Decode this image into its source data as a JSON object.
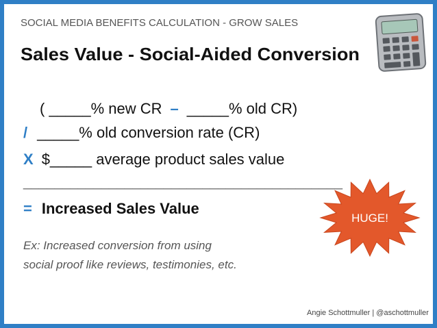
{
  "header": {
    "subtitle": "SOCIAL MEDIA BENEFITS CALCULATION - GROW SALES",
    "title": "Sales Value - Social-Aided Conversion"
  },
  "formula": {
    "line1": {
      "left": "( _____% new CR",
      "operator": "–",
      "right": "_____% old CR)"
    },
    "line2": {
      "operator": "/",
      "text": "_____% old conversion rate (CR)"
    },
    "line3": {
      "operator": "X",
      "text": "$_____ average product sales value"
    },
    "divider": "_________________________________________",
    "result": {
      "operator": "=",
      "text": "Increased Sales Value"
    }
  },
  "badge": "HUGE!",
  "example": [
    "Ex: Increased conversion from using",
    "social proof like reviews, testimonies, etc."
  ],
  "footer": "Angie Schottmuller | @aschottmuller"
}
